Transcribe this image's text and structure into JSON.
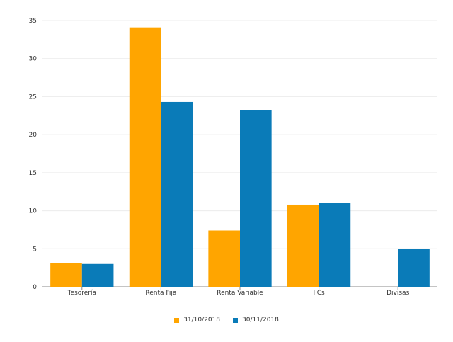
{
  "chart_data": {
    "type": "bar",
    "categories": [
      "Tesorería",
      "Renta Fija",
      "Renta Variable",
      "IICs",
      "Divisas"
    ],
    "series": [
      {
        "name": "31/10/2018",
        "color": "#FFA500",
        "values": [
          3.1,
          34.1,
          7.4,
          10.8,
          0
        ]
      },
      {
        "name": "30/11/2018",
        "color": "#0A7BB8",
        "values": [
          3.0,
          24.3,
          23.2,
          11.0,
          5.0
        ]
      }
    ],
    "ylim": [
      0,
      35
    ],
    "yticks": [
      0,
      5,
      10,
      15,
      20,
      25,
      30,
      35
    ],
    "grid": true,
    "legend_position": "bottom-center",
    "title": "",
    "xlabel": "",
    "ylabel": ""
  }
}
